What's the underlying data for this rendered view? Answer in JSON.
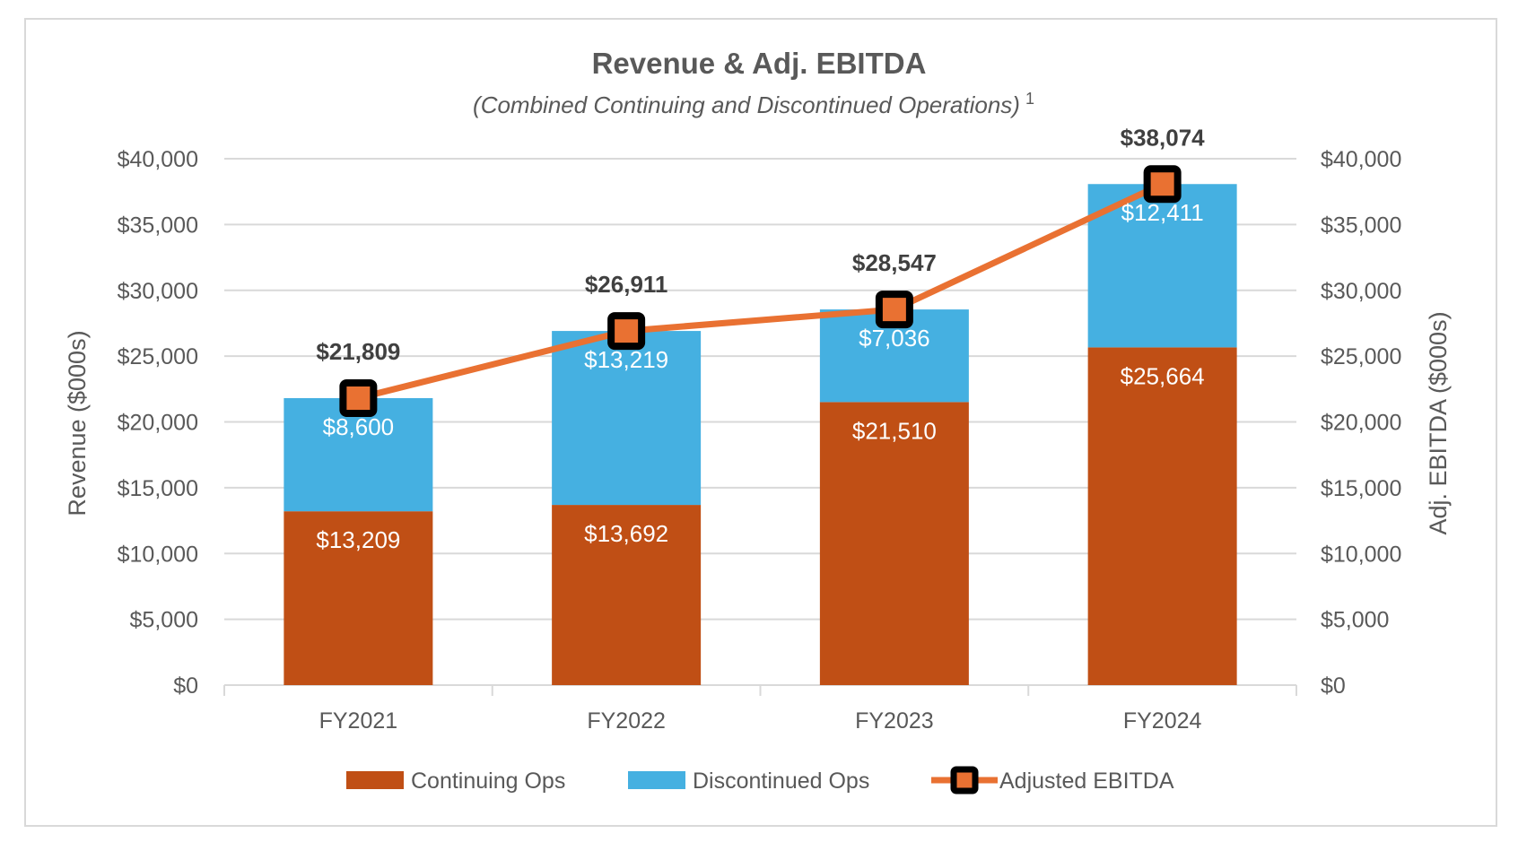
{
  "chart_data": {
    "type": "bar",
    "stacked": true,
    "title": "Revenue & Adj. EBITDA",
    "subtitle": "(Combined Continuing and Discontinued Operations)",
    "subtitle_footnote": "1",
    "ylabel": "Revenue ($000s)",
    "y2label": "Adj. EBITDA ($000s)",
    "ylim": [
      0,
      40000
    ],
    "y2lim": [
      0,
      40000
    ],
    "yticks": [
      "$0",
      "$5,000",
      "$10,000",
      "$15,000",
      "$20,000",
      "$25,000",
      "$30,000",
      "$35,000",
      "$40,000"
    ],
    "grid": true,
    "legend": "bottom",
    "categories": [
      "FY2021",
      "FY2022",
      "FY2023",
      "FY2024"
    ],
    "series": [
      {
        "name": "Continuing Ops",
        "type": "bar",
        "color": "#C04F15",
        "values": [
          13209,
          13692,
          21510,
          25664
        ],
        "labels": [
          "$13,209",
          "$13,692",
          "$21,510",
          "$25,664"
        ]
      },
      {
        "name": "Discontinued Ops",
        "type": "bar",
        "color": "#45B0E1",
        "values": [
          8600,
          13219,
          7036,
          12411
        ],
        "labels": [
          "$8,600",
          "$13,219",
          "$7,036",
          "$12,411"
        ]
      },
      {
        "name": "Adjusted EBITDA",
        "type": "line",
        "axis": "secondary",
        "color": "#E97132",
        "marker_color": "#000000",
        "values": [
          21809,
          26911,
          28547,
          38074
        ],
        "labels": [
          "$21,809",
          "$26,911",
          "$28,547",
          "$38,074"
        ]
      }
    ]
  }
}
